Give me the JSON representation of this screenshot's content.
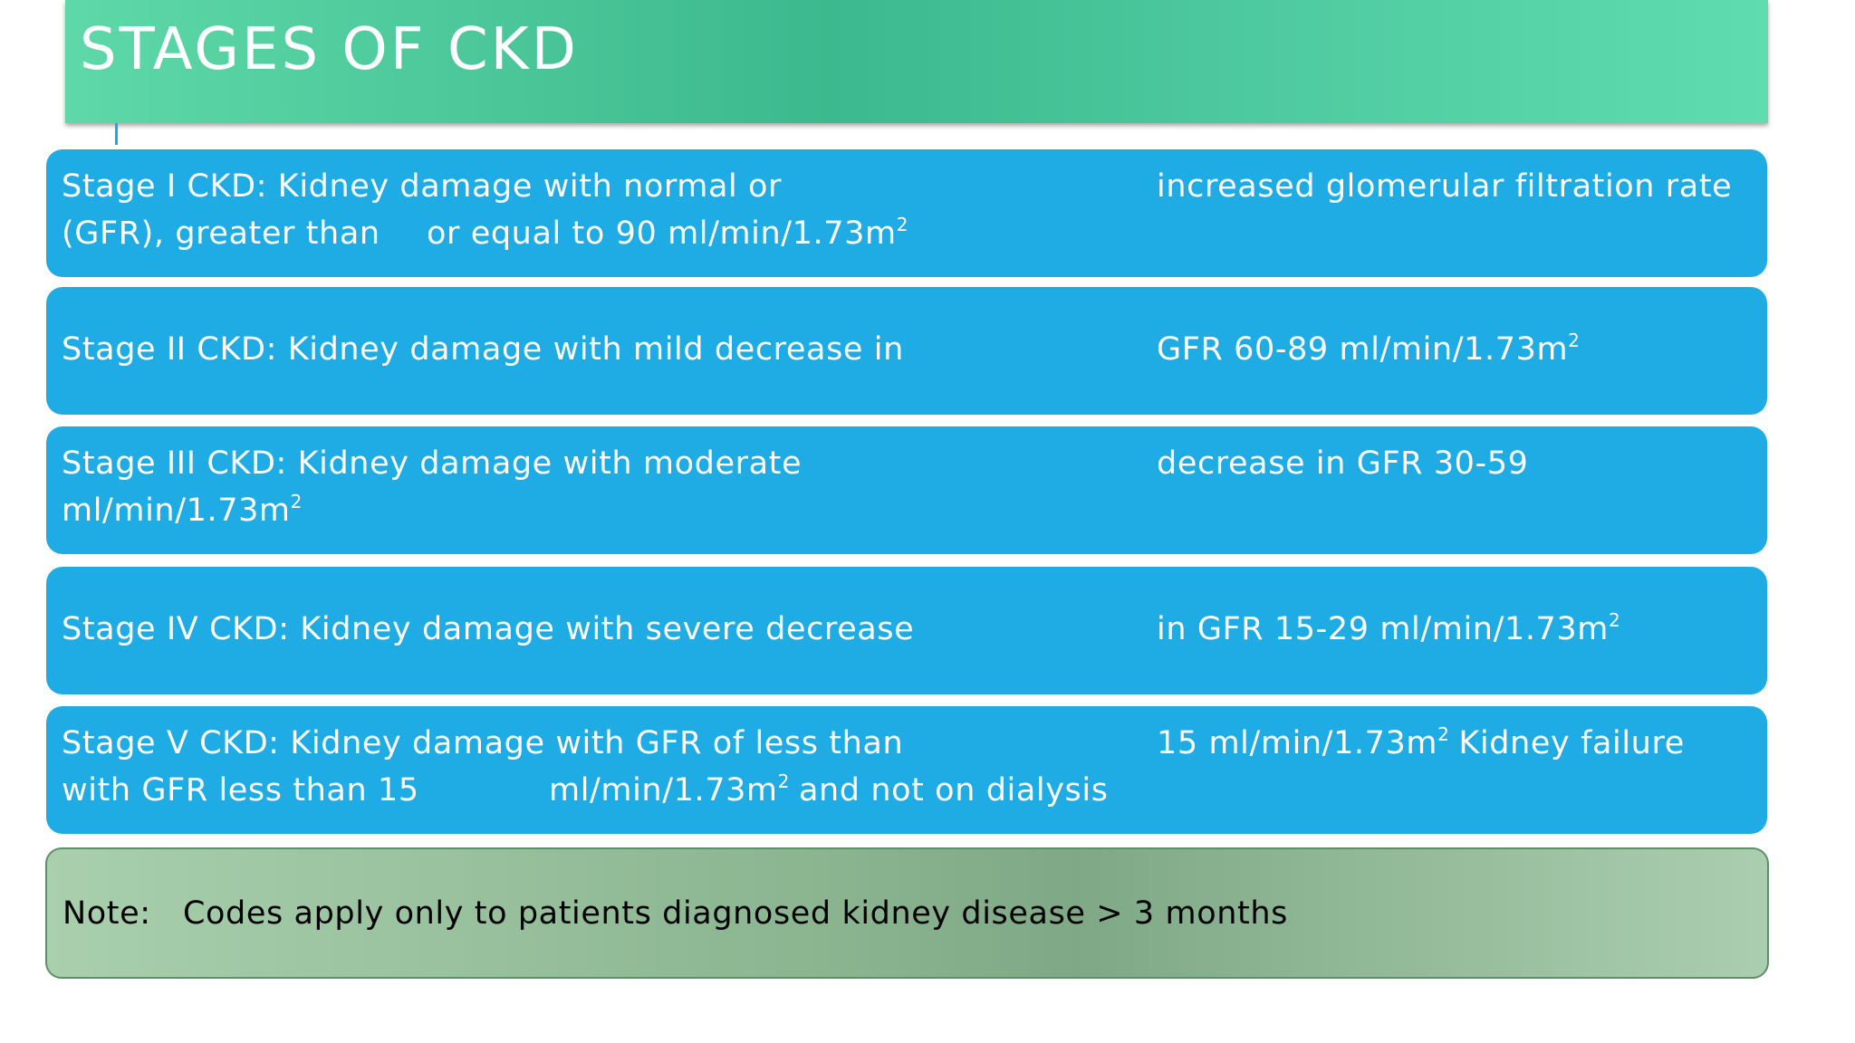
{
  "title": "STAGES OF CKD",
  "stages": [
    {
      "pieces": [
        "Stage I CKD: Kidney damage with normal or",
        "increased glomerular filtration rate",
        "(GFR), greater than",
        "or equal to 90 ml/min/1.73m",
        "2"
      ]
    },
    {
      "pieces": [
        "Stage II CKD: Kidney damage with mild decrease in",
        "GFR 60-89 ml/min/1.73m",
        "2"
      ]
    },
    {
      "pieces": [
        "Stage III CKD: Kidney damage with moderate",
        "decrease in GFR 30-59",
        "ml/min/1.73m",
        "2"
      ]
    },
    {
      "pieces": [
        "Stage IV CKD: Kidney damage with severe decrease",
        "in GFR 15-29 ml/min/1.73m",
        "2"
      ]
    },
    {
      "pieces": [
        "Stage V CKD: Kidney damage with GFR of less than",
        "15 ml/min/1.73m",
        "2",
        "Kidney failure",
        "with GFR less than 15",
        "ml/min/1.73m",
        "2",
        "and not on dialysis"
      ]
    }
  ],
  "note": {
    "label": "Note:",
    "text": "Codes apply only to patients diagnosed kidney disease > 3 months"
  }
}
